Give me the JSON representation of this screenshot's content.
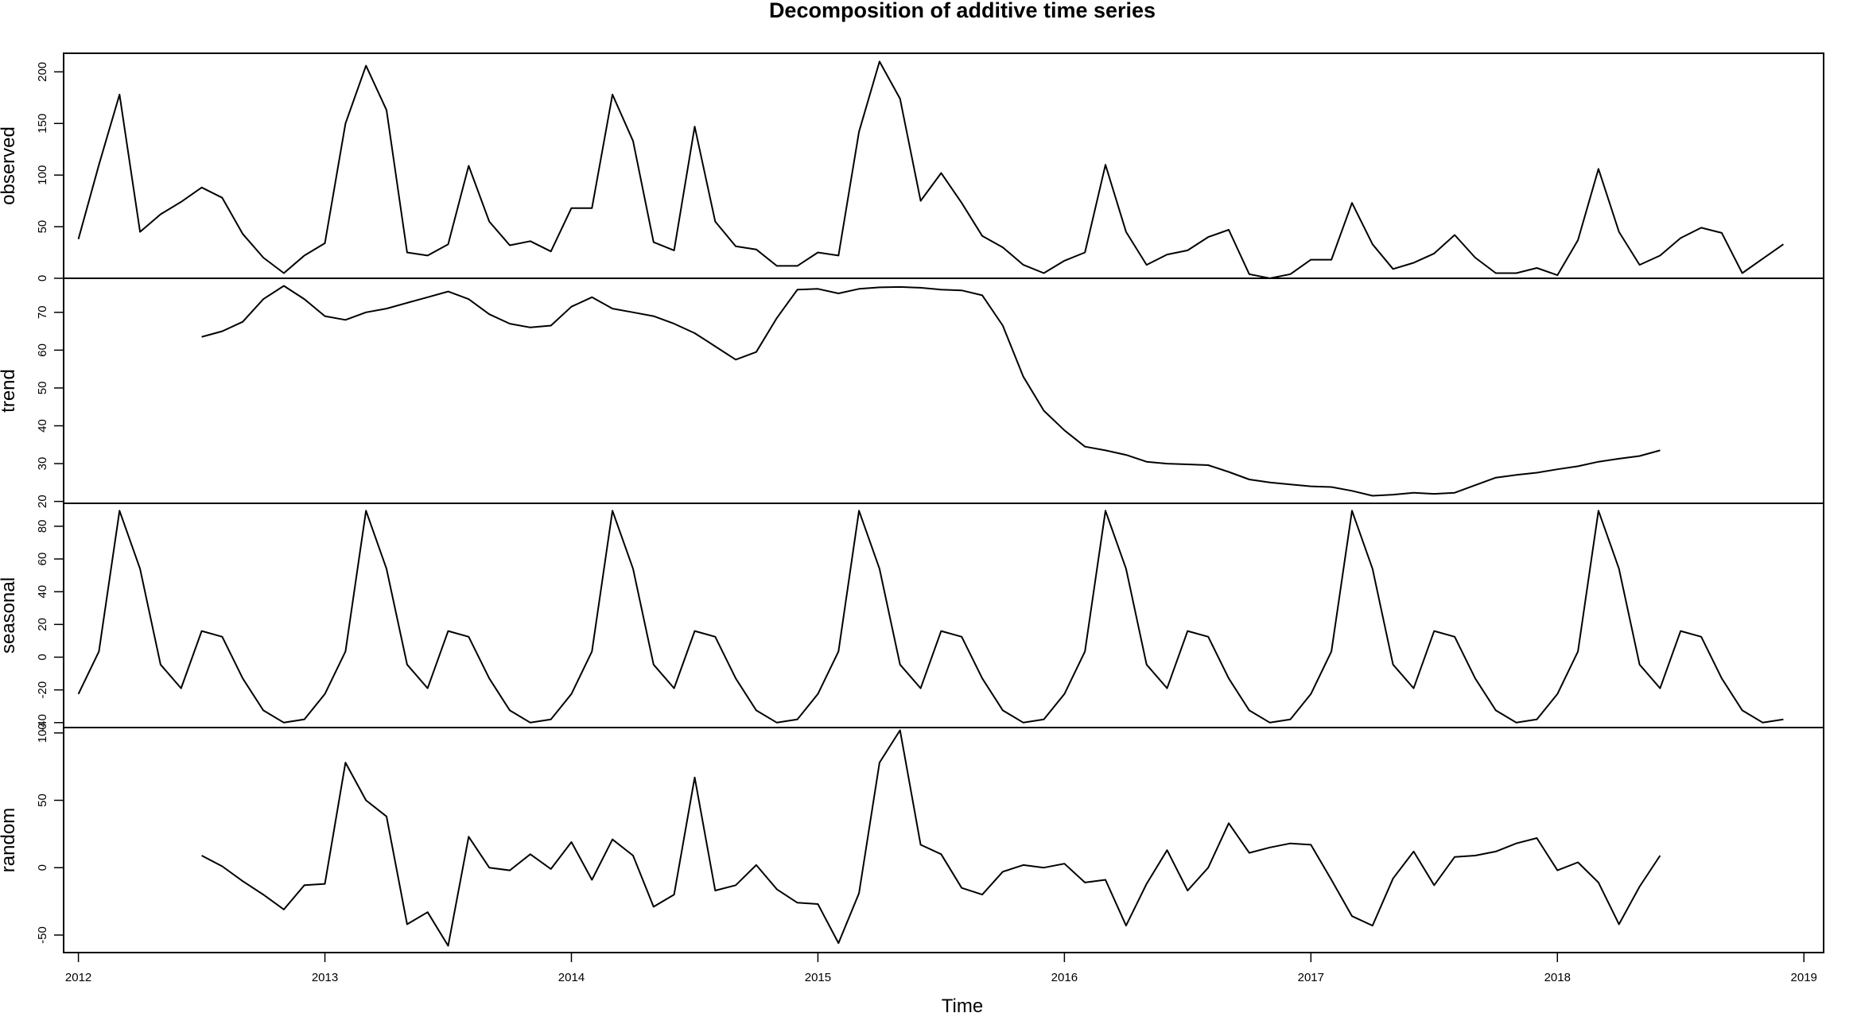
{
  "chart_data": {
    "type": "line",
    "title": "Decomposition of additive time series",
    "xlabel": "Time",
    "start": 2012,
    "frequency": 12,
    "xlim": [
      2011.94,
      2019.08
    ],
    "xticks": [
      2012,
      2013,
      2014,
      2015,
      2016,
      2017,
      2018,
      2019
    ],
    "panels": [
      {
        "name": "observed",
        "ylabel": "observed",
        "ylim": [
          0,
          218
        ],
        "yticks": [
          0,
          50,
          100,
          150,
          200
        ],
        "values": [
          38,
          110,
          178,
          45,
          62,
          74,
          88,
          78,
          43,
          20,
          5,
          22,
          34,
          150,
          206,
          163,
          25,
          22,
          33,
          109,
          55,
          32,
          36,
          26,
          68,
          68,
          178,
          133,
          35,
          27,
          147,
          55,
          31,
          28,
          12,
          12,
          25,
          22,
          142,
          210,
          174,
          75,
          102,
          73,
          41,
          30,
          13,
          5,
          17,
          25,
          110,
          45,
          13,
          23,
          27,
          40,
          47,
          4,
          0,
          4,
          18,
          18,
          73,
          33,
          9,
          15,
          24,
          42,
          20,
          5,
          5,
          10,
          3,
          37,
          106,
          45,
          13,
          22,
          39,
          49,
          44,
          5,
          19,
          33
        ]
      },
      {
        "name": "trend",
        "ylabel": "trend",
        "ylim": [
          19.5,
          79
        ],
        "yticks": [
          20,
          30,
          40,
          50,
          60,
          70
        ],
        "values": [
          null,
          null,
          null,
          null,
          null,
          null,
          63.5,
          65.0,
          67.5,
          73.5,
          77.0,
          73.5,
          69.0,
          68.0,
          70.0,
          71.0,
          72.5,
          74.0,
          75.5,
          73.5,
          69.5,
          67.0,
          66.0,
          66.5,
          71.5,
          74.0,
          71.0,
          70.0,
          69.0,
          67.0,
          64.5,
          61.0,
          57.5,
          59.5,
          68.5,
          76.0,
          76.2,
          75.0,
          76.2,
          76.6,
          76.7,
          76.5,
          76.0,
          75.8,
          74.5,
          66.5,
          53.0,
          44.0,
          38.8,
          34.5,
          33.5,
          32.3,
          30.5,
          30.0,
          29.8,
          29.6,
          27.8,
          25.8,
          25.0,
          24.5,
          24.0,
          23.8,
          22.8,
          21.5,
          21.8,
          22.3,
          22.0,
          22.3,
          24.3,
          26.3,
          27.0,
          27.6,
          28.5,
          29.3,
          30.5,
          31.3,
          32.0,
          33.5,
          null,
          null,
          null,
          null,
          null,
          null
        ]
      },
      {
        "name": "seasonal",
        "ylabel": "seasonal",
        "ylim": [
          -43,
          94
        ],
        "yticks": [
          -40,
          -20,
          0,
          20,
          40,
          60,
          80
        ],
        "values": [
          -22.5,
          3.5,
          89.5,
          54.0,
          -4.5,
          -19.0,
          16.0,
          12.5,
          -13.0,
          -32.5,
          -40.0,
          -38.0,
          -22.5,
          3.5,
          89.5,
          54.0,
          -4.5,
          -19.0,
          16.0,
          12.5,
          -13.0,
          -32.5,
          -40.0,
          -38.0,
          -22.5,
          3.5,
          89.5,
          54.0,
          -4.5,
          -19.0,
          16.0,
          12.5,
          -13.0,
          -32.5,
          -40.0,
          -38.0,
          -22.5,
          3.5,
          89.5,
          54.0,
          -4.5,
          -19.0,
          16.0,
          12.5,
          -13.0,
          -32.5,
          -40.0,
          -38.0,
          -22.5,
          3.5,
          89.5,
          54.0,
          -4.5,
          -19.0,
          16.0,
          12.5,
          -13.0,
          -32.5,
          -40.0,
          -38.0,
          -22.5,
          3.5,
          89.5,
          54.0,
          -4.5,
          -19.0,
          16.0,
          12.5,
          -13.0,
          -32.5,
          -40.0,
          -38.0,
          -22.5,
          3.5,
          89.5,
          54.0,
          -4.5,
          -19.0,
          16.0,
          12.5,
          -13.0,
          -32.5,
          -40.0,
          -38.0
        ]
      },
      {
        "name": "random",
        "ylabel": "random",
        "ylim": [
          -63,
          104
        ],
        "yticks": [
          -50,
          0,
          50,
          100
        ],
        "values": [
          null,
          null,
          null,
          null,
          null,
          null,
          9,
          1,
          -10,
          -20,
          -31,
          -13,
          -12,
          78,
          50,
          38,
          -42,
          -33,
          -58,
          23,
          0,
          -2,
          10,
          -1,
          19,
          -9,
          21,
          9,
          -29,
          -20,
          67,
          -17,
          -13,
          2,
          -16,
          -26,
          -27,
          -56,
          -19,
          78,
          102,
          17,
          10,
          -15,
          -20,
          -3,
          2,
          0,
          3,
          -11,
          -9,
          -43,
          -12,
          13,
          -17,
          0,
          33,
          11,
          15,
          18,
          17,
          -9,
          -36,
          -43,
          -8,
          12,
          -13,
          8,
          9,
          12,
          18,
          22,
          -2,
          4,
          -11,
          -42,
          -14,
          9,
          null,
          null,
          null,
          null,
          null,
          null
        ]
      }
    ]
  }
}
